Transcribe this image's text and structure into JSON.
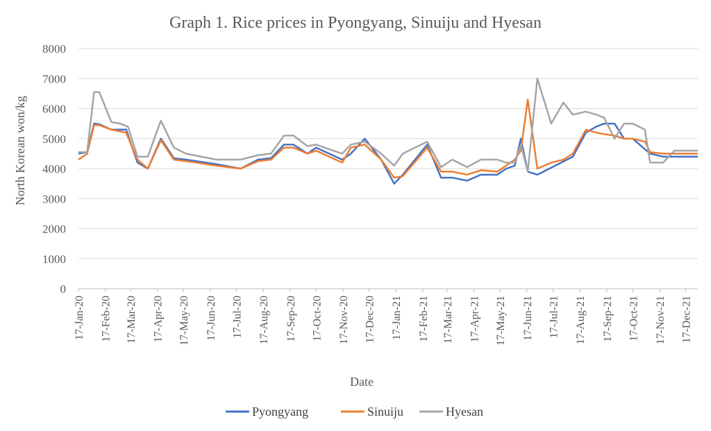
{
  "chart_data": {
    "type": "line",
    "title": "Graph 1. Rice prices in Pyongyang, Sinuiju and Hyesan",
    "xlabel": "Date",
    "ylabel": "North Korean won/kg",
    "ylim": [
      0,
      8000
    ],
    "yticks": [
      0,
      1000,
      2000,
      3000,
      4000,
      5000,
      6000,
      7000,
      8000
    ],
    "xlim": [
      "2020-01-17",
      "2021-12-31"
    ],
    "xticks": [
      {
        "date": "2020-01-17",
        "label": "17-Jan-20"
      },
      {
        "date": "2020-02-17",
        "label": "17-Feb-20"
      },
      {
        "date": "2020-03-17",
        "label": "17-Mar-20"
      },
      {
        "date": "2020-04-17",
        "label": "17-Apr-20"
      },
      {
        "date": "2020-05-17",
        "label": "17-May-20"
      },
      {
        "date": "2020-06-17",
        "label": "17-Jun-20"
      },
      {
        "date": "2020-07-17",
        "label": "17-Jul-20"
      },
      {
        "date": "2020-08-17",
        "label": "17-Aug-20"
      },
      {
        "date": "2020-09-17",
        "label": "17-Sep-20"
      },
      {
        "date": "2020-10-17",
        "label": "17-Oct-20"
      },
      {
        "date": "2020-11-17",
        "label": "17-Nov-20"
      },
      {
        "date": "2020-12-17",
        "label": "17-Dec-20"
      },
      {
        "date": "2021-01-17",
        "label": "17-Jan-21"
      },
      {
        "date": "2021-02-17",
        "label": "17-Feb-21"
      },
      {
        "date": "2021-03-17",
        "label": "17-Mar-21"
      },
      {
        "date": "2021-04-17",
        "label": "17-Apr-21"
      },
      {
        "date": "2021-05-17",
        "label": "17-May-21"
      },
      {
        "date": "2021-06-17",
        "label": "17-Jun-21"
      },
      {
        "date": "2021-07-17",
        "label": "17-Jul-21"
      },
      {
        "date": "2021-08-17",
        "label": "17-Aug-21"
      },
      {
        "date": "2021-09-17",
        "label": "17-Sep-21"
      },
      {
        "date": "2021-10-17",
        "label": "17-Oct-21"
      },
      {
        "date": "2021-11-17",
        "label": "17-Nov-21"
      },
      {
        "date": "2021-12-17",
        "label": "17-Dec-21"
      }
    ],
    "grid": "horizontal",
    "legend": "bottom-center",
    "series": [
      {
        "name": "Pyongyang",
        "color": "#4472c4",
        "points": [
          [
            "2020-01-17",
            4500
          ],
          [
            "2020-01-27",
            4550
          ],
          [
            "2020-02-04",
            5500
          ],
          [
            "2020-02-10",
            5480
          ],
          [
            "2020-02-24",
            5300
          ],
          [
            "2020-03-12",
            5300
          ],
          [
            "2020-03-25",
            4200
          ],
          [
            "2020-04-06",
            4000
          ],
          [
            "2020-04-21",
            5000
          ],
          [
            "2020-05-06",
            4350
          ],
          [
            "2020-05-20",
            4300
          ],
          [
            "2020-06-24",
            4150
          ],
          [
            "2020-07-22",
            4000
          ],
          [
            "2020-08-11",
            4300
          ],
          [
            "2020-08-26",
            4350
          ],
          [
            "2020-09-10",
            4800
          ],
          [
            "2020-09-21",
            4800
          ],
          [
            "2020-10-07",
            4500
          ],
          [
            "2020-10-17",
            4700
          ],
          [
            "2020-11-16",
            4300
          ],
          [
            "2020-11-26",
            4500
          ],
          [
            "2020-12-12",
            5000
          ],
          [
            "2020-12-31",
            4300
          ],
          [
            "2021-01-15",
            3500
          ],
          [
            "2021-01-25",
            3800
          ],
          [
            "2021-02-22",
            4800
          ],
          [
            "2021-03-10",
            3700
          ],
          [
            "2021-03-23",
            3700
          ],
          [
            "2021-04-09",
            3600
          ],
          [
            "2021-04-25",
            3800
          ],
          [
            "2021-05-14",
            3800
          ],
          [
            "2021-05-24",
            4000
          ],
          [
            "2021-06-03",
            4100
          ],
          [
            "2021-06-10",
            5000
          ],
          [
            "2021-06-18",
            3900
          ],
          [
            "2021-06-29",
            3800
          ],
          [
            "2021-08-09",
            4400
          ],
          [
            "2021-08-24",
            5200
          ],
          [
            "2021-09-05",
            5400
          ],
          [
            "2021-09-14",
            5500
          ],
          [
            "2021-09-26",
            5500
          ],
          [
            "2021-10-07",
            5000
          ],
          [
            "2021-10-17",
            5000
          ],
          [
            "2021-11-06",
            4500
          ],
          [
            "2021-11-21",
            4400
          ],
          [
            "2021-12-04",
            4400
          ],
          [
            "2021-12-31",
            4400
          ]
        ]
      },
      {
        "name": "Sinuiju",
        "color": "#ed7d31",
        "points": [
          [
            "2020-01-17",
            4300
          ],
          [
            "2020-01-27",
            4500
          ],
          [
            "2020-02-04",
            5450
          ],
          [
            "2020-02-10",
            5450
          ],
          [
            "2020-02-24",
            5300
          ],
          [
            "2020-03-12",
            5200
          ],
          [
            "2020-03-25",
            4300
          ],
          [
            "2020-04-06",
            4000
          ],
          [
            "2020-04-21",
            4950
          ],
          [
            "2020-05-06",
            4300
          ],
          [
            "2020-05-20",
            4250
          ],
          [
            "2020-06-24",
            4100
          ],
          [
            "2020-07-22",
            4000
          ],
          [
            "2020-08-11",
            4250
          ],
          [
            "2020-08-26",
            4300
          ],
          [
            "2020-09-10",
            4700
          ],
          [
            "2020-09-21",
            4700
          ],
          [
            "2020-10-07",
            4500
          ],
          [
            "2020-10-17",
            4600
          ],
          [
            "2020-11-16",
            4200
          ],
          [
            "2020-11-26",
            4700
          ],
          [
            "2020-12-12",
            4800
          ],
          [
            "2020-12-31",
            4300
          ],
          [
            "2021-01-15",
            3700
          ],
          [
            "2021-01-25",
            3750
          ],
          [
            "2021-02-22",
            4700
          ],
          [
            "2021-03-10",
            3900
          ],
          [
            "2021-03-23",
            3900
          ],
          [
            "2021-04-09",
            3800
          ],
          [
            "2021-04-25",
            3950
          ],
          [
            "2021-05-14",
            3900
          ],
          [
            "2021-05-24",
            4100
          ],
          [
            "2021-06-03",
            4300
          ],
          [
            "2021-06-10",
            4600
          ],
          [
            "2021-06-18",
            6300
          ],
          [
            "2021-06-29",
            4000
          ],
          [
            "2021-07-15",
            4200
          ],
          [
            "2021-07-29",
            4300
          ],
          [
            "2021-08-09",
            4500
          ],
          [
            "2021-08-24",
            5300
          ],
          [
            "2021-09-05",
            5200
          ],
          [
            "2021-09-14",
            5150
          ],
          [
            "2021-09-26",
            5100
          ],
          [
            "2021-10-07",
            5000
          ],
          [
            "2021-10-17",
            5000
          ],
          [
            "2021-10-31",
            4900
          ],
          [
            "2021-11-06",
            4550
          ],
          [
            "2021-11-21",
            4500
          ],
          [
            "2021-12-04",
            4500
          ],
          [
            "2021-12-31",
            4500
          ]
        ]
      },
      {
        "name": "Hyesan",
        "color": "#a5a5a5",
        "points": [
          [
            "2020-01-17",
            4550
          ],
          [
            "2020-01-27",
            4550
          ],
          [
            "2020-02-04",
            6550
          ],
          [
            "2020-02-10",
            6550
          ],
          [
            "2020-02-24",
            5550
          ],
          [
            "2020-03-05",
            5500
          ],
          [
            "2020-03-14",
            5400
          ],
          [
            "2020-03-25",
            4400
          ],
          [
            "2020-04-06",
            4400
          ],
          [
            "2020-04-21",
            5600
          ],
          [
            "2020-05-06",
            4700
          ],
          [
            "2020-05-20",
            4500
          ],
          [
            "2020-06-24",
            4300
          ],
          [
            "2020-07-22",
            4300
          ],
          [
            "2020-08-11",
            4450
          ],
          [
            "2020-08-26",
            4500
          ],
          [
            "2020-09-10",
            5100
          ],
          [
            "2020-09-21",
            5100
          ],
          [
            "2020-10-07",
            4750
          ],
          [
            "2020-10-17",
            4800
          ],
          [
            "2020-11-16",
            4500
          ],
          [
            "2020-11-26",
            4800
          ],
          [
            "2020-12-12",
            4900
          ],
          [
            "2020-12-31",
            4500
          ],
          [
            "2021-01-15",
            4100
          ],
          [
            "2021-01-25",
            4500
          ],
          [
            "2021-02-22",
            4900
          ],
          [
            "2021-03-10",
            4050
          ],
          [
            "2021-03-23",
            4300
          ],
          [
            "2021-04-09",
            4050
          ],
          [
            "2021-04-25",
            4300
          ],
          [
            "2021-05-14",
            4300
          ],
          [
            "2021-05-24",
            4200
          ],
          [
            "2021-06-03",
            4200
          ],
          [
            "2021-06-10",
            4800
          ],
          [
            "2021-06-18",
            3900
          ],
          [
            "2021-06-29",
            7000
          ],
          [
            "2021-07-15",
            5500
          ],
          [
            "2021-07-29",
            6200
          ],
          [
            "2021-08-09",
            5800
          ],
          [
            "2021-08-24",
            5900
          ],
          [
            "2021-09-05",
            5800
          ],
          [
            "2021-09-14",
            5700
          ],
          [
            "2021-09-26",
            5000
          ],
          [
            "2021-10-07",
            5500
          ],
          [
            "2021-10-17",
            5500
          ],
          [
            "2021-10-31",
            5300
          ],
          [
            "2021-11-06",
            4200
          ],
          [
            "2021-11-21",
            4200
          ],
          [
            "2021-12-04",
            4600
          ],
          [
            "2021-12-31",
            4600
          ]
        ]
      }
    ]
  }
}
